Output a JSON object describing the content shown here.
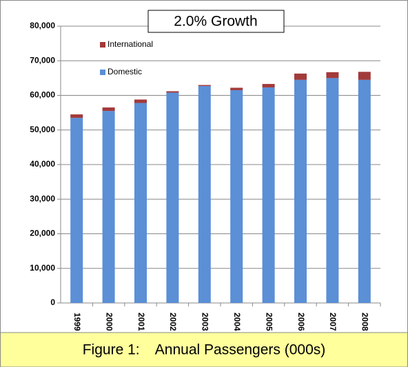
{
  "chart_data": {
    "type": "stacked-bar",
    "title": "2.0% Growth",
    "caption": "Figure 1:    Annual Passengers (000s)",
    "categories": [
      "1999",
      "2000",
      "2001",
      "2002",
      "2003",
      "2004",
      "2005",
      "2006",
      "2007",
      "2008"
    ],
    "series": [
      {
        "name": "Domestic",
        "color": "#5b8fd6",
        "values": [
          53500,
          55500,
          57800,
          60800,
          62700,
          61500,
          62300,
          64500,
          65000,
          64500
        ]
      },
      {
        "name": "International",
        "color": "#a33a3a",
        "values": [
          1000,
          1000,
          1000,
          400,
          300,
          700,
          1000,
          1800,
          1700,
          2300
        ]
      }
    ],
    "ylim": [
      0,
      80000
    ],
    "yticks": [
      0,
      {
        "value": 10000,
        "label": "10,000"
      },
      {
        "value": 20000,
        "label": "20,000"
      },
      {
        "value": 30000,
        "label": "30,000"
      },
      {
        "value": 40000,
        "label": "40,000"
      },
      {
        "value": 50000,
        "label": "50,000"
      },
      {
        "value": 60000,
        "label": "60,000"
      },
      {
        "value": 70000,
        "label": "70,000"
      },
      {
        "value": 80000,
        "label": "80,000"
      }
    ],
    "grid": true
  }
}
